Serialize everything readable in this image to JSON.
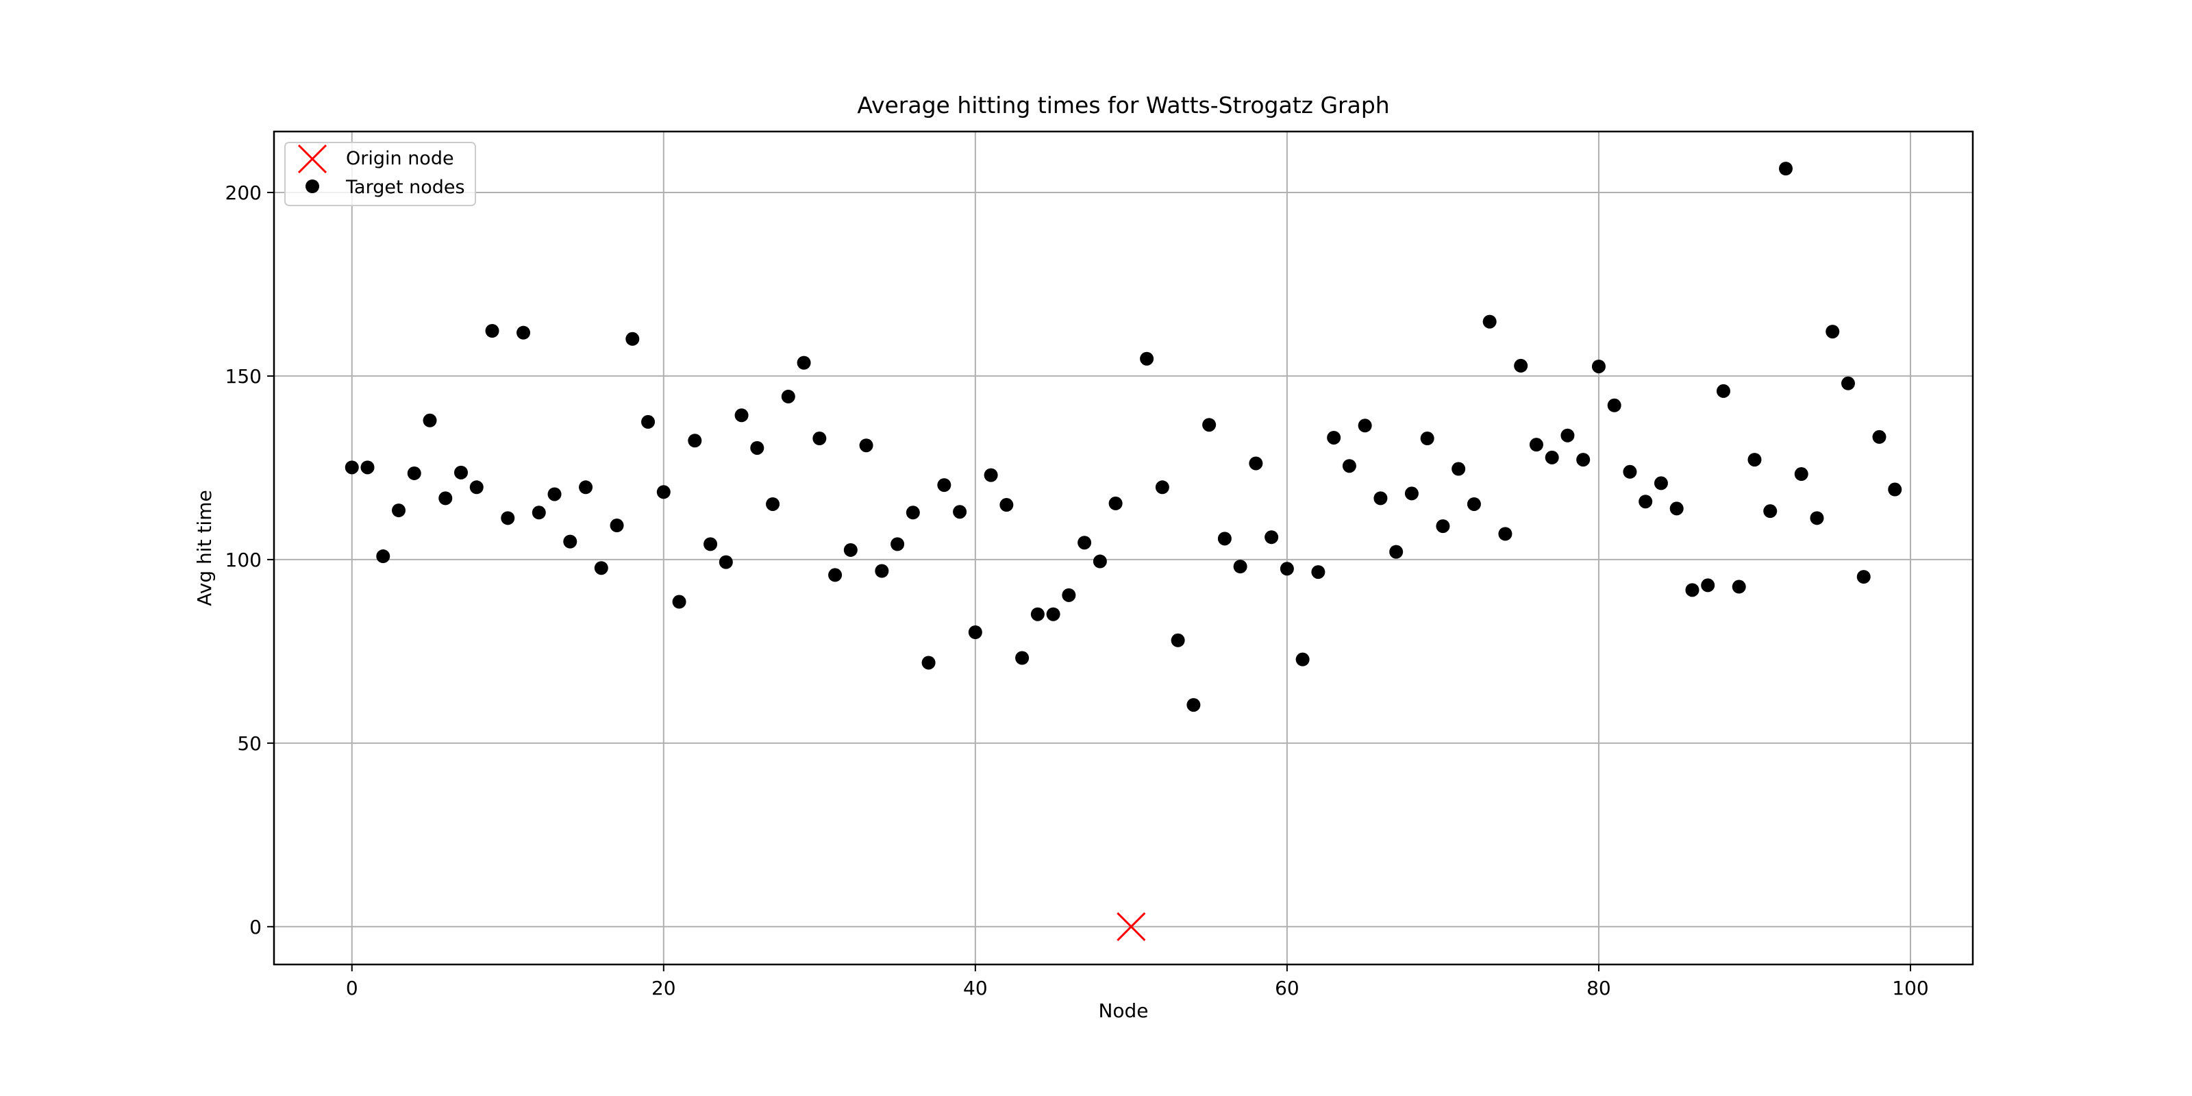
{
  "chart_data": {
    "type": "scatter",
    "title": "Average hitting times for Watts-Strogatz Graph",
    "xlabel": "Node",
    "ylabel": "Avg hit time",
    "xlim": [
      -5,
      104
    ],
    "ylim": [
      -10.3,
      216.6
    ],
    "xticks": [
      0,
      20,
      40,
      60,
      80,
      100
    ],
    "yticks": [
      0,
      50,
      100,
      150,
      200
    ],
    "grid": true,
    "legend_position": "top-left",
    "series": [
      {
        "name": "Origin node",
        "marker": "x",
        "color": "#ff0000",
        "x": [
          50
        ],
        "y": [
          0
        ]
      },
      {
        "name": "Target nodes",
        "marker": "circle",
        "color": "#000000",
        "x": [
          0,
          1,
          2,
          3,
          4,
          5,
          6,
          7,
          8,
          9,
          10,
          11,
          12,
          13,
          14,
          15,
          16,
          17,
          18,
          19,
          20,
          21,
          22,
          23,
          24,
          25,
          26,
          27,
          28,
          29,
          30,
          31,
          32,
          33,
          34,
          35,
          36,
          37,
          38,
          39,
          40,
          41,
          42,
          43,
          44,
          45,
          46,
          47,
          48,
          49,
          51,
          52,
          53,
          54,
          55,
          56,
          57,
          58,
          59,
          60,
          61,
          62,
          63,
          64,
          65,
          66,
          67,
          68,
          69,
          70,
          71,
          72,
          73,
          74,
          75,
          76,
          77,
          78,
          79,
          80,
          81,
          82,
          83,
          84,
          85,
          86,
          87,
          88,
          89,
          90,
          91,
          92,
          93,
          94,
          95,
          96,
          97,
          98,
          99
        ],
        "y": [
          125.1,
          125.1,
          100.9,
          113.4,
          123.5,
          137.9,
          116.7,
          123.7,
          119.7,
          162.3,
          111.3,
          161.8,
          112.8,
          117.8,
          104.9,
          119.7,
          97.7,
          109.3,
          160.1,
          137.5,
          118.4,
          88.5,
          132.4,
          104.2,
          99.3,
          139.3,
          130.4,
          115.1,
          144.4,
          153.6,
          133.0,
          95.8,
          102.6,
          131.1,
          96.9,
          104.2,
          112.8,
          71.9,
          120.3,
          113.0,
          80.2,
          123.0,
          114.9,
          73.2,
          85.1,
          85.1,
          90.3,
          104.6,
          99.5,
          115.3,
          154.7,
          119.7,
          78.0,
          60.4,
          136.7,
          105.7,
          98.1,
          126.2,
          106.1,
          97.5,
          72.8,
          96.6,
          133.2,
          125.5,
          136.5,
          116.7,
          102.1,
          118.0,
          133.0,
          109.1,
          124.7,
          115.1,
          164.8,
          107.0,
          152.8,
          131.3,
          127.8,
          133.8,
          127.2,
          152.6,
          142.0,
          123.9,
          115.8,
          120.8,
          113.9,
          91.7,
          93.0,
          145.9,
          92.6,
          127.2,
          113.2,
          206.5,
          123.3,
          111.3,
          162.1,
          148.0,
          95.3,
          133.4,
          119.1
        ]
      }
    ]
  }
}
